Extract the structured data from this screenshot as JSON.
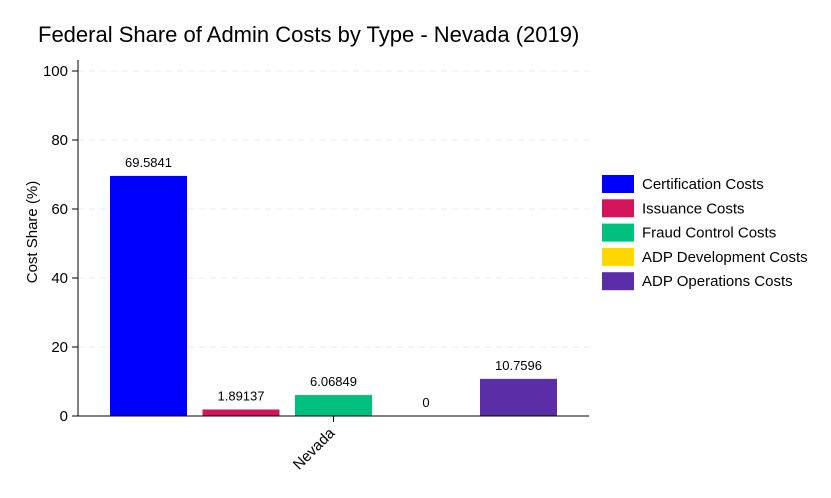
{
  "chart_data": {
    "type": "bar",
    "title": "Federal Share of Admin Costs by Type - Nevada (2019)",
    "xlabel": "",
    "ylabel": "Cost Share (%)",
    "ylim": [
      0,
      100
    ],
    "yticks": [
      0,
      20,
      40,
      60,
      80,
      100
    ],
    "grid": true,
    "legend_position": "right",
    "categories": [
      "Nevada"
    ],
    "series": [
      {
        "name": "Certification Costs",
        "color": "#0000ff",
        "values": [
          69.5841
        ],
        "label": "69.5841"
      },
      {
        "name": "Issuance Costs",
        "color": "#d4145a",
        "values": [
          1.89137
        ],
        "label": "1.89137"
      },
      {
        "name": "Fraud Control Costs",
        "color": "#00c07f",
        "values": [
          6.06849
        ],
        "label": "6.06849"
      },
      {
        "name": "ADP Development Costs",
        "color": "#ffd700",
        "values": [
          0
        ],
        "label": "0"
      },
      {
        "name": "ADP Operations Costs",
        "color": "#5a2ea6",
        "values": [
          10.7596
        ],
        "label": "10.7596"
      }
    ]
  }
}
